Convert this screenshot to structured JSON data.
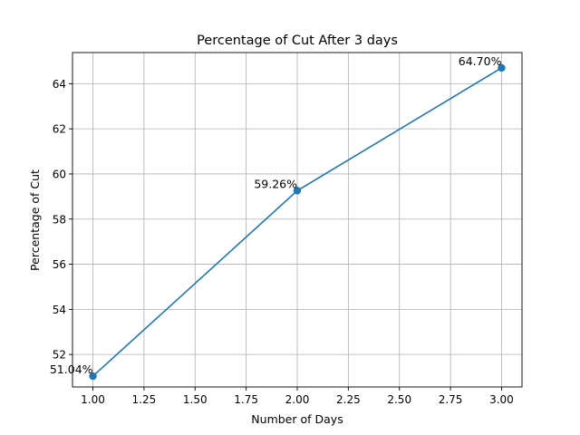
{
  "chart_data": {
    "type": "line",
    "title": "Percentage of Cut After 3 days",
    "xlabel": "Number of Days",
    "ylabel": "Percentage of Cut",
    "xlim": [
      0.9,
      3.1
    ],
    "ylim": [
      50.56,
      65.38
    ],
    "xticks": [
      "1.00",
      "1.25",
      "1.50",
      "1.75",
      "2.00",
      "2.25",
      "2.50",
      "2.75",
      "3.00"
    ],
    "yticks": [
      "52",
      "54",
      "56",
      "58",
      "60",
      "62",
      "64"
    ],
    "grid": true,
    "series": [
      {
        "x": [
          1,
          2,
          3
        ],
        "y": [
          51.04,
          59.26,
          64.7
        ],
        "labels": [
          "51.04%",
          "59.26%",
          "64.70%"
        ],
        "color": "#1f77b4",
        "marker": "circle"
      }
    ]
  }
}
